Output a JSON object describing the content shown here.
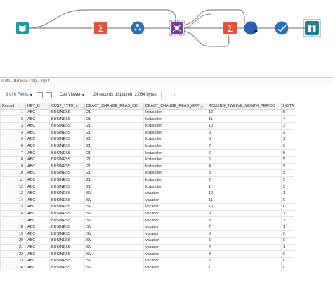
{
  "results": {
    "title": "sults - Browse (30) - Input"
  },
  "toolbar": {
    "fields_label": "6 of 6 Fields",
    "viewer_label": "Cell Viewer",
    "records_label": "24 records displayed, 2,064 bytes"
  },
  "table": {
    "columns": [
      "Record",
      "KEY_C",
      "CUST_TYPE_c",
      "DEACT_CHANGE_REAS_CD",
      "DEACT_CHANGE_REAS_GRP_c",
      "ROLLING_TWELVE_MONTH_PERIOD",
      "INSTANCES"
    ],
    "rows": [
      [
        "1",
        "ABC",
        "BUSINESS",
        "21",
        "lost/stolen",
        "12",
        "5"
      ],
      [
        "2",
        "ABC",
        "BUSINESS",
        "21",
        "lost/stolen",
        "11",
        "4"
      ],
      [
        "3",
        "ABC",
        "BUSINESS",
        "21",
        "lost/stolen",
        "10",
        "3"
      ],
      [
        "4",
        "ABC",
        "BUSINESS",
        "21",
        "lost/stolen",
        "9",
        "2"
      ],
      [
        "5",
        "ABC",
        "BUSINESS",
        "21",
        "lost/stolen",
        "8",
        "1"
      ],
      [
        "6",
        "ABC",
        "BUSINESS",
        "21",
        "lost/stolen",
        "7",
        "6"
      ],
      [
        "7",
        "ABC",
        "BUSINESS",
        "21",
        "lost/stolen",
        "6",
        "5"
      ],
      [
        "8",
        "ABC",
        "BUSINESS",
        "21",
        "lost/stolen",
        "5",
        "5"
      ],
      [
        "9",
        "ABC",
        "BUSINESS",
        "21",
        "lost/stolen",
        "4",
        "5"
      ],
      [
        "10",
        "ABC",
        "BUSINESS",
        "21",
        "lost/stolen",
        "3",
        "5"
      ],
      [
        "11",
        "ABC",
        "BUSINESS",
        "21",
        "lost/stolen",
        "2",
        "5"
      ],
      [
        "12",
        "ABC",
        "BUSINESS",
        "21",
        "lost/stolen",
        "1",
        "5"
      ],
      [
        "13",
        "ABC",
        "BUSINESS",
        "SV",
        "vacation",
        "12",
        "1"
      ],
      [
        "14",
        "ABC",
        "BUSINESS",
        "SV",
        "vacation",
        "11",
        "0"
      ],
      [
        "15",
        "ABC",
        "BUSINESS",
        "SV",
        "vacation",
        "10",
        "0"
      ],
      [
        "16",
        "ABC",
        "BUSINESS",
        "SV",
        "vacation",
        "9",
        "1"
      ],
      [
        "17",
        "ABC",
        "BUSINESS",
        "SV",
        "vacation",
        "8",
        "1"
      ],
      [
        "18",
        "ABC",
        "BUSINESS",
        "SV",
        "vacation",
        "7",
        "1"
      ],
      [
        "19",
        "ABC",
        "BUSINESS",
        "SV",
        "vacation",
        "6",
        "0"
      ],
      [
        "20",
        "ABC",
        "BUSINESS",
        "SV",
        "vacation",
        "5",
        "0"
      ],
      [
        "21",
        "ABC",
        "BUSINESS",
        "SV",
        "vacation",
        "4",
        "1"
      ],
      [
        "22",
        "ABC",
        "BUSINESS",
        "SV",
        "vacation",
        "3",
        "0"
      ],
      [
        "23",
        "ABC",
        "BUSINESS",
        "SV",
        "vacation",
        "2",
        "0"
      ],
      [
        "24",
        "ABC",
        "BUSINESS",
        "SV",
        "vacation",
        "1",
        "0"
      ]
    ]
  },
  "tools": [
    {
      "name": "input-data-icon"
    },
    {
      "name": "summarize-icon"
    },
    {
      "name": "record-id-icon"
    },
    {
      "name": "join-icon"
    },
    {
      "name": "summarize-icon"
    },
    {
      "name": "formula-icon"
    },
    {
      "name": "select-icon"
    },
    {
      "name": "browse-icon"
    }
  ],
  "colors": {
    "input": "#1e9aa5",
    "summarize": "#e4513f",
    "record_id": "#2f6fb5",
    "join": "#7a3ea1",
    "browse": "#1b7f98",
    "select": "#2c6eb7",
    "wire": "#8a8a8a"
  }
}
